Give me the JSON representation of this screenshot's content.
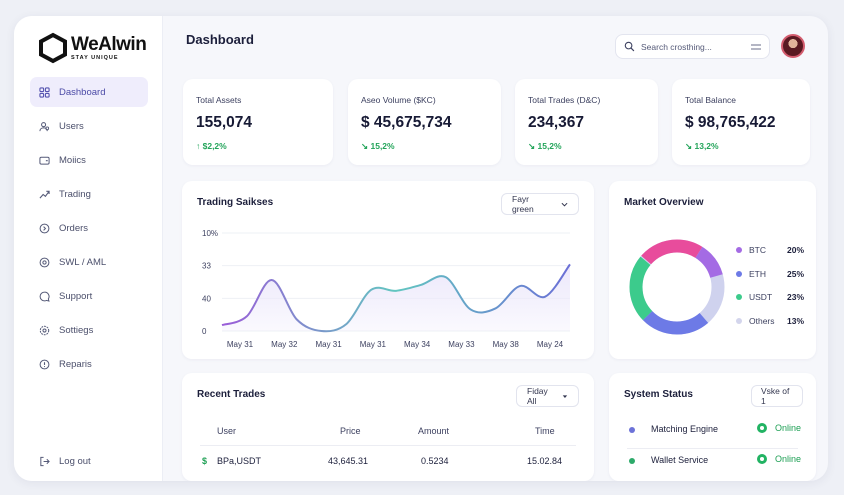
{
  "brand": {
    "name": "WeAlwin",
    "tagline": "STAY UNIQUE"
  },
  "sidebar": {
    "items": [
      {
        "label": "Dashboard",
        "icon": "grid-icon",
        "active": true
      },
      {
        "label": "Users",
        "icon": "users-icon"
      },
      {
        "label": "Moiics",
        "icon": "wallet-icon"
      },
      {
        "label": "Trading",
        "icon": "trend-icon"
      },
      {
        "label": "Orders",
        "icon": "orders-icon"
      },
      {
        "label": "SWL / AML",
        "icon": "target-icon"
      },
      {
        "label": "Support",
        "icon": "chat-icon"
      },
      {
        "label": "Sottiegs",
        "icon": "gear-icon"
      },
      {
        "label": "Reparis",
        "icon": "report-icon"
      }
    ],
    "logout": {
      "label": "Log out",
      "icon": "logout-icon"
    }
  },
  "header": {
    "title": "Dashboard",
    "search_placeholder": "Search crosthing...",
    "icons": {
      "search": "search-icon",
      "menu": "menu-icon",
      "avatar": "avatar"
    }
  },
  "stats": [
    {
      "label": "Total Assets",
      "value": "155,074",
      "change": "↑ $2,2%"
    },
    {
      "label": "Aseo Volume ($KC)",
      "value": "$ 45,675,734",
      "change": "↘ 15,2%"
    },
    {
      "label": "Total Trades (D&C)",
      "value": "234,367",
      "change": "↘ 15,2%"
    },
    {
      "label": "Total Balance",
      "value": "$ 98,765,422",
      "change": "↘ 13,2%"
    }
  ],
  "trading": {
    "title": "Trading Saikses",
    "filter": "Fayr green"
  },
  "market": {
    "title": "Market Overview",
    "legend": [
      {
        "name": "BTC",
        "value": "20%",
        "color": "#a46be4"
      },
      {
        "name": "ETH",
        "value": "25%",
        "color": "#6d7ae6"
      },
      {
        "name": "USDT",
        "value": "23%",
        "color": "#3ccb8c"
      },
      {
        "name": "Others",
        "value": "13%",
        "color": "#d3d5ec"
      }
    ]
  },
  "recent_trades": {
    "title": "Recent Trades",
    "filter": "Fiday All",
    "columns": [
      "User",
      "Price",
      "Amount",
      "Time"
    ],
    "rows": [
      {
        "user_icon": "$",
        "user": "BPa,USDT",
        "price": "43,645.31",
        "amount": "0.5234",
        "time": "15.02.84"
      }
    ]
  },
  "system_status": {
    "title": "System Status",
    "filter": "Vske of 1",
    "services": [
      {
        "name": "Matching Engine",
        "status": "Online",
        "dot": "#6c72d8"
      },
      {
        "name": "Wallet Service",
        "status": "Online",
        "dot": "#2daa6a"
      }
    ]
  },
  "chart_data": {
    "type": "area",
    "title": "Trading Saikses",
    "y_tick_labels": [
      "10%",
      "33",
      "40",
      "0"
    ],
    "x_tick_labels": [
      "May 31",
      "May 32",
      "May 31",
      "May 31",
      "May 34",
      "May 33",
      "May 38",
      "May 24"
    ],
    "series": [
      {
        "values": [
          0.06,
          0.15,
          0.52,
          0.12,
          0.0,
          0.07,
          0.42,
          0.41,
          0.47,
          0.55,
          0.22,
          0.23,
          0.46,
          0.35,
          0.68
        ]
      }
    ],
    "line_colors": [
      "#9a5cd8",
      "#62c6c0",
      "#6b6fd6"
    ],
    "fill_color": "#ece8fb"
  }
}
